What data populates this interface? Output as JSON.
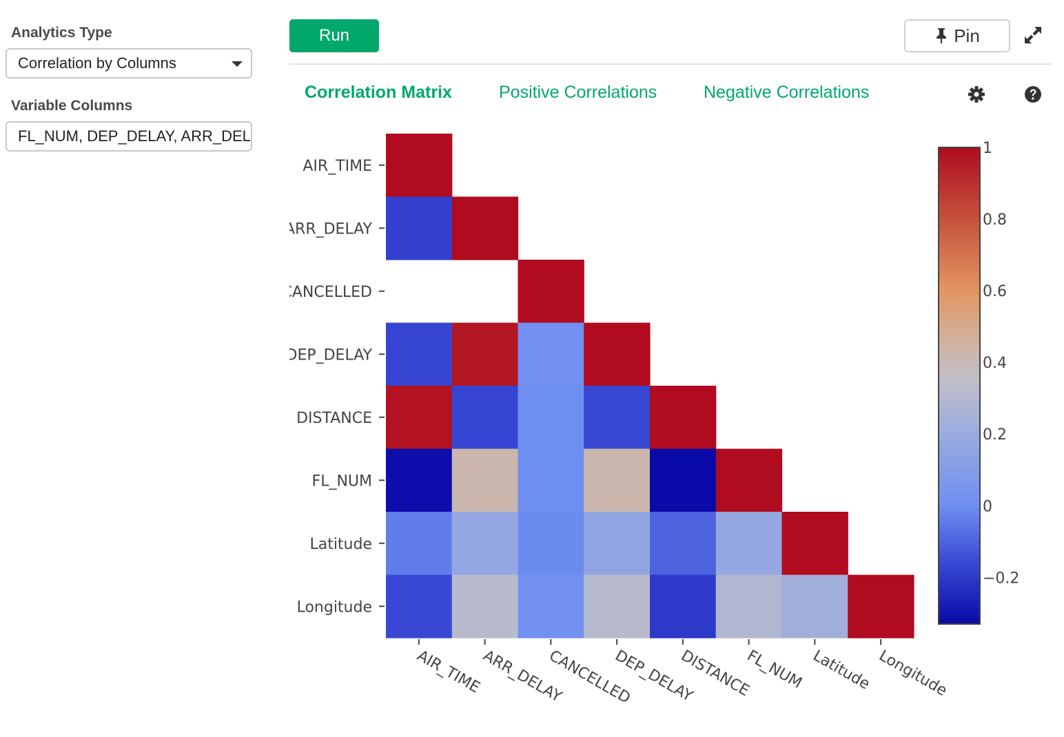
{
  "sidebar": {
    "analytics_type_label": "Analytics Type",
    "analytics_type_value": "Correlation by Columns",
    "variable_columns_label": "Variable Columns",
    "variable_columns_value": "FL_NUM, DEP_DELAY, ARR_DELAY, AIR_TIME, CANCELLED, DISTANCE, Latitude, Longitude"
  },
  "toolbar": {
    "run_label": "Run",
    "pin_label": "Pin",
    "icons": {
      "pin": "pin-icon",
      "expand": "expand-icon",
      "settings": "gear-icon",
      "help": "help-icon"
    }
  },
  "tabs": [
    {
      "label": "Correlation Matrix",
      "active": true
    },
    {
      "label": "Positive Correlations",
      "active": false
    },
    {
      "label": "Negative Correlations",
      "active": false
    }
  ],
  "colors": {
    "accent": "#00a86b"
  },
  "chart_data": {
    "type": "heatmap",
    "variables": [
      "AIR_TIME",
      "ARR_DELAY",
      "CANCELLED",
      "DEP_DELAY",
      "DISTANCE",
      "FL_NUM",
      "Latitude",
      "Longitude"
    ],
    "y_tick_labels": [
      "AIR_TIME",
      "ARR_DELAY",
      "CANCELLED",
      "DEP_DELAY",
      "DISTANCE",
      "FL_NUM",
      "Latitude",
      "Longitude"
    ],
    "matrix": [
      [
        1,
        null,
        null,
        null,
        null,
        null,
        null,
        null
      ],
      [
        -0.18,
        1,
        null,
        null,
        null,
        null,
        null,
        null
      ],
      [
        null,
        null,
        1,
        null,
        null,
        null,
        null,
        null
      ],
      [
        -0.17,
        0.97,
        0.01,
        1,
        null,
        null,
        null,
        null
      ],
      [
        0.98,
        -0.17,
        0.0,
        -0.16,
        1,
        null,
        null,
        null
      ],
      [
        -0.32,
        0.42,
        0.0,
        0.42,
        -0.33,
        1,
        null,
        null
      ],
      [
        -0.04,
        0.17,
        -0.01,
        0.16,
        -0.1,
        0.18,
        1,
        null
      ],
      [
        -0.16,
        0.32,
        0.01,
        0.32,
        -0.2,
        0.29,
        0.23,
        1
      ]
    ],
    "colorscale": {
      "min": -0.33,
      "max": 1,
      "stops": [
        {
          "value": -0.33,
          "color": "#0a0aa8"
        },
        {
          "value": -0.15,
          "color": "#3b4cd6"
        },
        {
          "value": 0.0,
          "color": "#6f8ff0"
        },
        {
          "value": 0.2,
          "color": "#9aabdf"
        },
        {
          "value": 0.35,
          "color": "#c0bfc8"
        },
        {
          "value": 0.45,
          "color": "#cfb3a3"
        },
        {
          "value": 0.6,
          "color": "#e39561"
        },
        {
          "value": 0.8,
          "color": "#c5523c"
        },
        {
          "value": 1.0,
          "color": "#b00b1e"
        }
      ],
      "ticks": [
        {
          "value": 1,
          "label": "1"
        },
        {
          "value": 0.8,
          "label": "0.8"
        },
        {
          "value": 0.6,
          "label": "0.6"
        },
        {
          "value": 0.4,
          "label": "0.4"
        },
        {
          "value": 0.2,
          "label": "0.2"
        },
        {
          "value": 0,
          "label": "0"
        },
        {
          "value": -0.2,
          "label": "−0.2"
        }
      ]
    }
  }
}
